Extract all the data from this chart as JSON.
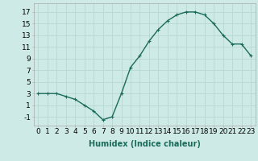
{
  "x": [
    0,
    1,
    2,
    3,
    4,
    5,
    6,
    7,
    8,
    9,
    10,
    11,
    12,
    13,
    14,
    15,
    16,
    17,
    18,
    19,
    20,
    21,
    22,
    23
  ],
  "y": [
    3,
    3,
    3,
    2.5,
    2,
    1,
    0,
    -1.5,
    -1,
    3,
    7.5,
    9.5,
    12,
    14,
    15.5,
    16.5,
    17,
    17,
    16.5,
    15,
    13,
    11.5,
    11.5,
    9.5
  ],
  "line_color": "#1a6b5a",
  "marker": "+",
  "marker_size": 3,
  "marker_linewidth": 0.8,
  "bg_color": "#ceeae6",
  "grid_color": "#b8d8d4",
  "xlabel": "Humidex (Indice chaleur)",
  "xlabel_fontsize": 7,
  "ylabel_ticks": [
    -1,
    1,
    3,
    5,
    7,
    9,
    11,
    13,
    15,
    17
  ],
  "xtick_labels": [
    "0",
    "1",
    "2",
    "3",
    "4",
    "5",
    "6",
    "7",
    "8",
    "9",
    "10",
    "11",
    "12",
    "13",
    "14",
    "15",
    "16",
    "17",
    "18",
    "19",
    "20",
    "21",
    "22",
    "23"
  ],
  "xlim": [
    -0.5,
    23.5
  ],
  "ylim": [
    -2.5,
    18.5
  ],
  "tick_fontsize": 6.5,
  "linewidth": 1.0
}
